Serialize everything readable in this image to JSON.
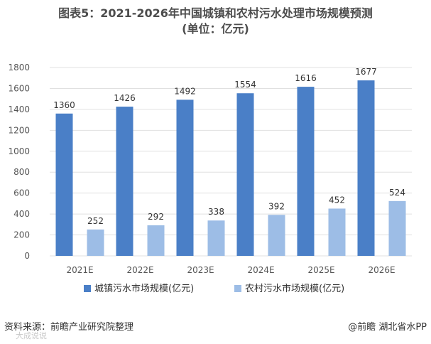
{
  "title_line1": "图表5：2021-2026年中国城镇和农村污水处理市场规模预测",
  "title_line2": "(单位：亿元)",
  "footer": {
    "source": "资料来源：前瞻产业研究院整理",
    "credit": "@前瞻 湖北省水PP",
    "watermark": "大成说说"
  },
  "colors": {
    "series1": "#4a7fc7",
    "series2": "#9dbde6",
    "grid": "#e0e0e0",
    "axis_text": "#555555"
  },
  "chart_data": {
    "type": "bar",
    "categories": [
      "2021E",
      "2022E",
      "2023E",
      "2024E",
      "2025E",
      "2026E"
    ],
    "series": [
      {
        "name": "城镇污水市场规模(亿元)",
        "values": [
          1360,
          1426,
          1492,
          1554,
          1616,
          1677
        ]
      },
      {
        "name": "农村污水市场规模(亿元)",
        "values": [
          252,
          292,
          338,
          392,
          452,
          524
        ]
      }
    ],
    "ylim": [
      0,
      1800
    ],
    "yticks": [
      0,
      200,
      400,
      600,
      800,
      1000,
      1200,
      1400,
      1600,
      1800
    ],
    "grid": true,
    "legend": "bottom",
    "data_labels": true
  }
}
